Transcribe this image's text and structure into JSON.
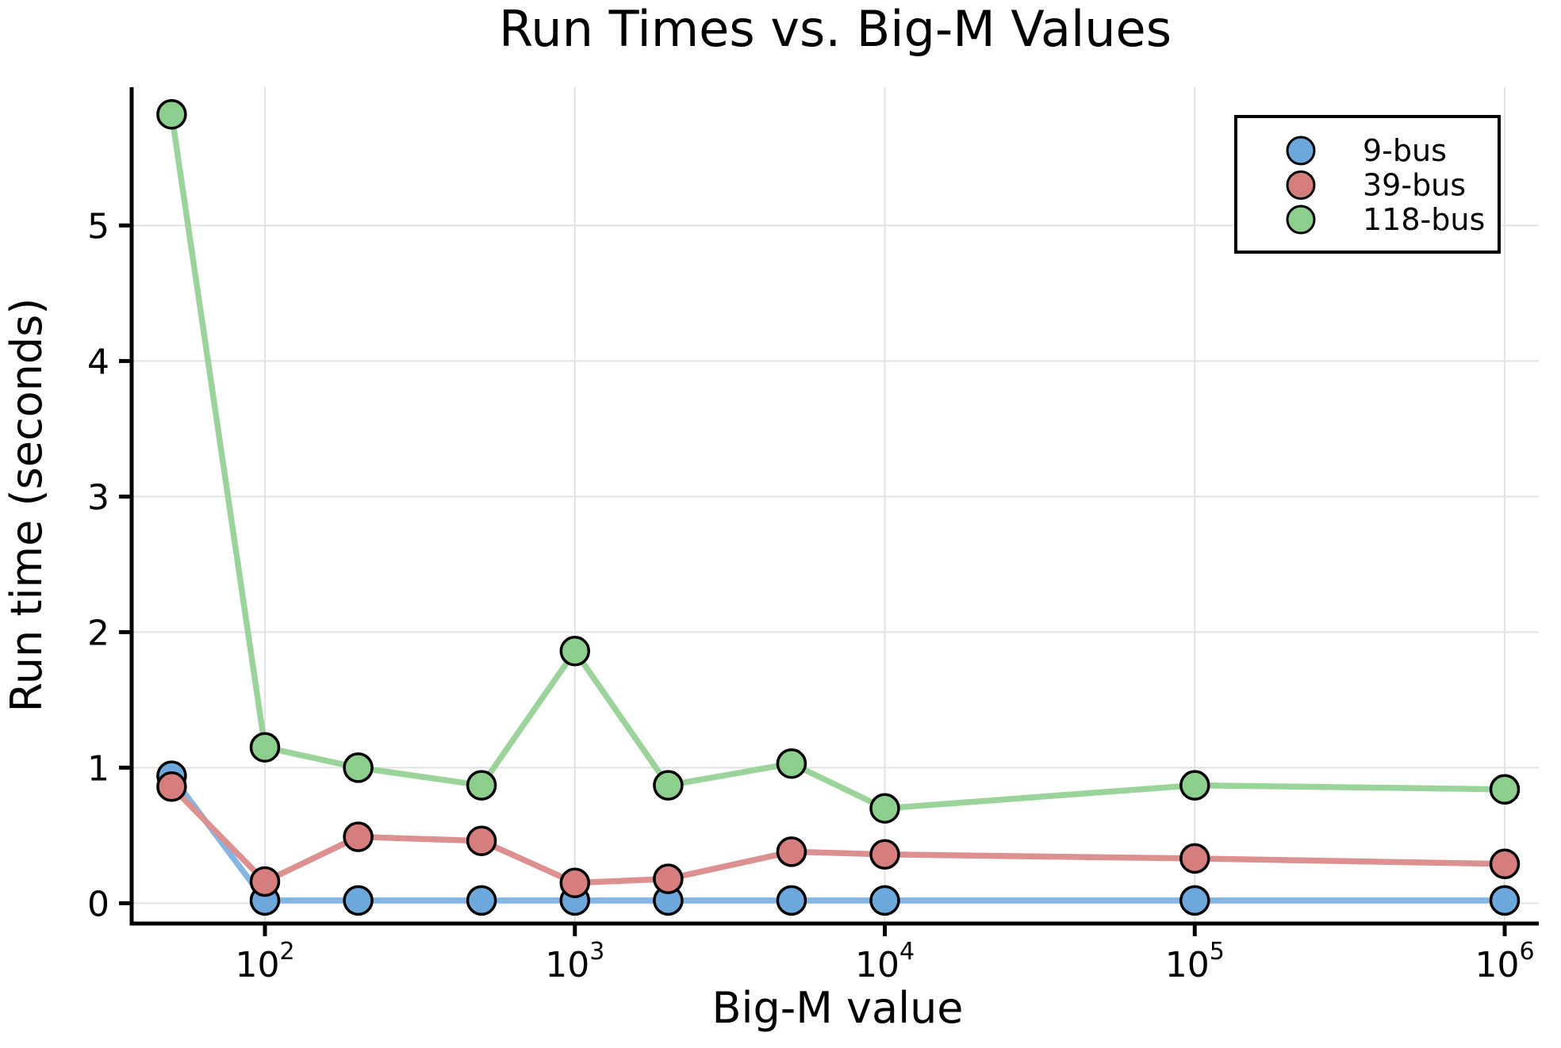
{
  "chart_data": {
    "type": "line",
    "title": "Run Times vs. Big-M Values",
    "xlabel": "Big-M value",
    "ylabel": "Run time (seconds)",
    "x_scale": "log",
    "x": [
      50,
      100,
      200,
      500,
      1000,
      2000,
      5000,
      10000,
      100000,
      1000000
    ],
    "series": [
      {
        "name": "9-bus",
        "marker_color": "#6CA8DC",
        "line_color": "#85B6E3",
        "values": [
          0.94,
          0.02,
          0.02,
          0.02,
          0.02,
          0.02,
          0.02,
          0.02,
          0.02,
          0.02
        ]
      },
      {
        "name": "39-bus",
        "marker_color": "#D67E7E",
        "line_color": "#DD9090",
        "values": [
          0.86,
          0.16,
          0.49,
          0.46,
          0.15,
          0.18,
          0.38,
          0.36,
          0.33,
          0.29
        ]
      },
      {
        "name": "118-bus",
        "marker_color": "#8CCE8C",
        "line_color": "#9AD49A",
        "values": [
          5.82,
          1.15,
          1.0,
          0.87,
          1.86,
          0.87,
          1.03,
          0.7,
          0.87,
          0.84
        ]
      }
    ],
    "x_ticks": [
      {
        "value": 100,
        "base": "10",
        "exp": "2"
      },
      {
        "value": 1000,
        "base": "10",
        "exp": "3"
      },
      {
        "value": 10000,
        "base": "10",
        "exp": "4"
      },
      {
        "value": 100000,
        "base": "10",
        "exp": "5"
      },
      {
        "value": 1000000,
        "base": "10",
        "exp": "6"
      }
    ],
    "y_ticks": [
      "0",
      "1",
      "2",
      "3",
      "4",
      "5"
    ],
    "xlim_log10": [
      1.57,
      6.11
    ],
    "ylim": [
      -0.15,
      6.02
    ],
    "grid": true,
    "grid_color": "#e2e2e2",
    "marker_edge_color": "#000000",
    "legend": {
      "position": "upper right",
      "entries": [
        "9-bus",
        "39-bus",
        "118-bus"
      ],
      "border_color": "#000000",
      "background_color": "#ffffff"
    }
  }
}
